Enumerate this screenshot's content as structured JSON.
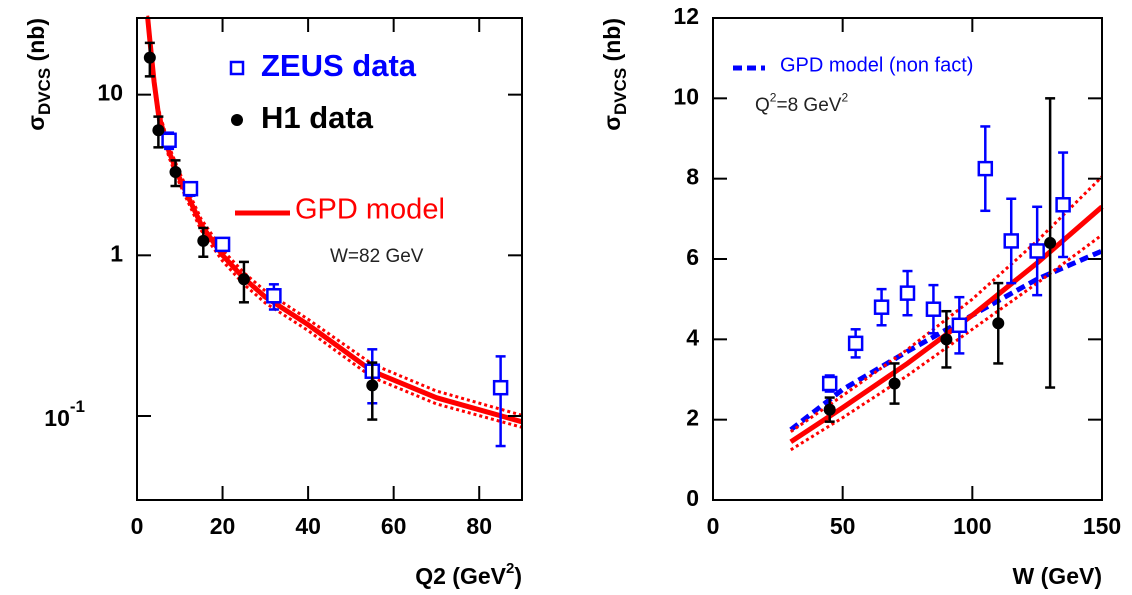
{
  "chart_data": [
    {
      "type": "scatter",
      "ylog": true,
      "xlim": [
        0,
        90
      ],
      "ylim": [
        0.03,
        30
      ],
      "xticks": [
        0,
        20,
        40,
        60,
        80
      ],
      "yticks": [
        {
          "value": 0.1,
          "label": "10",
          "sup": "-1"
        },
        1,
        10
      ],
      "x_label": [
        {
          "text": "Q2 (GeV"
        },
        {
          "text": "2",
          "sup": true
        },
        {
          "text": ")"
        }
      ],
      "y_label": [
        {
          "text": "σ"
        },
        {
          "text": "DVCS",
          "sub": true
        },
        {
          "text": " (nb)"
        }
      ],
      "annotation": [
        {
          "text": "W=82 GeV"
        }
      ],
      "series": [
        {
          "name": "ZEUS data",
          "color": "#0000ff",
          "marker": "square",
          "x": [
            7.5,
            12.5,
            20,
            32,
            55,
            85
          ],
          "values": [
            5.2,
            2.6,
            1.17,
            0.56,
            0.19,
            0.15
          ],
          "errors": [
            0.6,
            0.25,
            0.1,
            0.1,
            0.07,
            0.085
          ]
        },
        {
          "name": "H1 data",
          "color": "#000000",
          "marker": "circle",
          "x": [
            3,
            5,
            9,
            15.5,
            25,
            55
          ],
          "values": [
            17,
            6,
            3.3,
            1.23,
            0.71,
            0.155
          ],
          "errors": [
            4,
            1.3,
            0.6,
            0.25,
            0.2,
            0.06
          ]
        },
        {
          "name": "GPD model",
          "color": "#ff0000",
          "style": "solid",
          "width": 5,
          "x": [
            2.5,
            3,
            4,
            5,
            7.5,
            10,
            15,
            20,
            25,
            30,
            40,
            55,
            70,
            90
          ],
          "values": [
            30,
            22,
            12,
            7.6,
            4.4,
            3.0,
            1.55,
            1.0,
            0.72,
            0.55,
            0.37,
            0.19,
            0.13,
            0.092
          ]
        },
        {
          "color": "#ff0000",
          "style": "dotted",
          "width": 3,
          "x": [
            2.5,
            3,
            4,
            5,
            7.5,
            10,
            15,
            20,
            25,
            30,
            40,
            55,
            70,
            90
          ],
          "values": [
            31,
            23.5,
            12.9,
            8.2,
            4.75,
            3.25,
            1.68,
            1.08,
            0.78,
            0.6,
            0.4,
            0.21,
            0.143,
            0.101
          ]
        },
        {
          "color": "#ff0000",
          "style": "dotted",
          "width": 3,
          "x": [
            2.5,
            3,
            4,
            5,
            7.5,
            10,
            15,
            20,
            25,
            30,
            40,
            55,
            70,
            90
          ],
          "values": [
            28,
            20.5,
            11.1,
            7.0,
            4.05,
            2.77,
            1.43,
            0.92,
            0.66,
            0.505,
            0.34,
            0.174,
            0.119,
            0.085
          ]
        }
      ]
    },
    {
      "type": "scatter",
      "ylog": false,
      "xlim": [
        0,
        150
      ],
      "ylim": [
        0,
        12
      ],
      "xticks": [
        0,
        50,
        100,
        150
      ],
      "yticks": [
        0,
        2,
        4,
        6,
        8,
        10,
        12
      ],
      "x_label": [
        {
          "text": "W (GeV)"
        }
      ],
      "y_label": [
        {
          "text": "σ"
        },
        {
          "text": "DVCS",
          "sub": true
        },
        {
          "text": " (nb)"
        }
      ],
      "annotation": [
        {
          "text": "Q"
        },
        {
          "text": "2",
          "sup": true
        },
        {
          "text": "=8 GeV"
        },
        {
          "text": "2",
          "sup": true
        }
      ],
      "series": [
        {
          "name": "GPD model (non fact)",
          "color": "#0000ff",
          "style": "dashed",
          "width": 5,
          "x": [
            30,
            50,
            75,
            100,
            125,
            150
          ],
          "values": [
            1.75,
            2.75,
            3.7,
            4.6,
            5.5,
            6.2
          ]
        },
        {
          "color": "#ff0000",
          "style": "solid",
          "width": 5,
          "x": [
            30,
            50,
            75,
            100,
            125,
            150
          ],
          "values": [
            1.45,
            2.3,
            3.4,
            4.6,
            5.9,
            7.3
          ]
        },
        {
          "color": "#ff0000",
          "style": "dotted",
          "width": 3,
          "x": [
            30,
            50,
            75,
            100,
            125,
            150
          ],
          "values": [
            1.7,
            2.6,
            3.75,
            5.0,
            6.45,
            8.05
          ]
        },
        {
          "color": "#ff0000",
          "style": "dotted",
          "width": 3,
          "x": [
            30,
            50,
            75,
            100,
            125,
            150
          ],
          "values": [
            1.25,
            2.05,
            3.1,
            4.25,
            5.4,
            6.6
          ]
        },
        {
          "color": "#0000ff",
          "marker": "square",
          "x": [
            45,
            55,
            65,
            75,
            85,
            95,
            105,
            115,
            125,
            135
          ],
          "values": [
            2.9,
            3.9,
            4.8,
            5.15,
            4.75,
            4.35,
            8.25,
            6.45,
            6.2,
            7.35
          ],
          "errors": [
            0.2,
            0.35,
            0.45,
            0.55,
            0.6,
            0.7,
            1.05,
            1.05,
            1.1,
            1.3
          ]
        },
        {
          "color": "#000000",
          "marker": "circle",
          "x": [
            45,
            70,
            90,
            110,
            130
          ],
          "values": [
            2.25,
            2.9,
            4.0,
            4.4,
            6.4
          ],
          "errors": [
            0.3,
            0.5,
            0.7,
            1.0,
            3.6
          ]
        }
      ]
    }
  ]
}
